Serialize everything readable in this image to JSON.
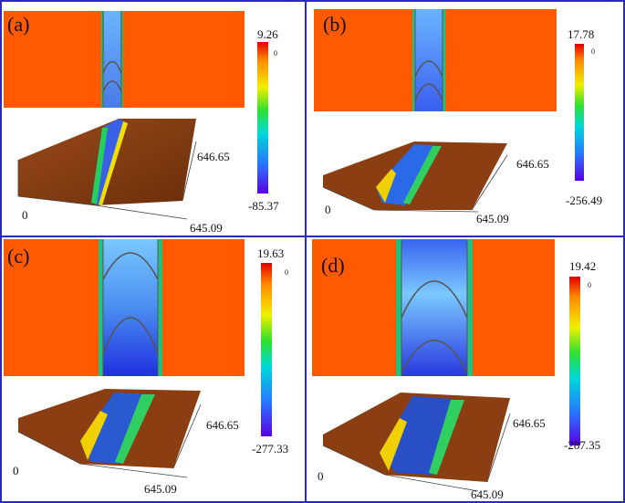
{
  "panels": [
    {
      "id": "a",
      "label": "(a)",
      "colorbar": {
        "max": "9.26",
        "zero": "0",
        "min": "-85.37"
      },
      "axis_y": "646.65",
      "axis_origin": "0",
      "axis_x": "645.09"
    },
    {
      "id": "b",
      "label": "(b)",
      "colorbar": {
        "max": "17.78",
        "zero": "0",
        "min": "-256.49"
      },
      "axis_y": "646.65",
      "axis_origin": "0",
      "axis_x": "645.09"
    },
    {
      "id": "c",
      "label": "(c)",
      "colorbar": {
        "max": "19.63",
        "zero": "0",
        "min": "-277.33"
      },
      "axis_y": "646.65",
      "axis_origin": "0",
      "axis_x": "645.09"
    },
    {
      "id": "d",
      "label": "(d)",
      "colorbar": {
        "max": "19.42",
        "zero": "0",
        "min": "-287.35"
      },
      "axis_y": "646.65",
      "axis_origin": "0",
      "axis_x": "645.09"
    }
  ],
  "colors": {
    "surface_top": "#ff5a00",
    "surface_3d": "#8a3e12",
    "groove_blue": "#3a7de0",
    "groove_deep": "#1d2fd8",
    "border": "#2b2bb8"
  }
}
